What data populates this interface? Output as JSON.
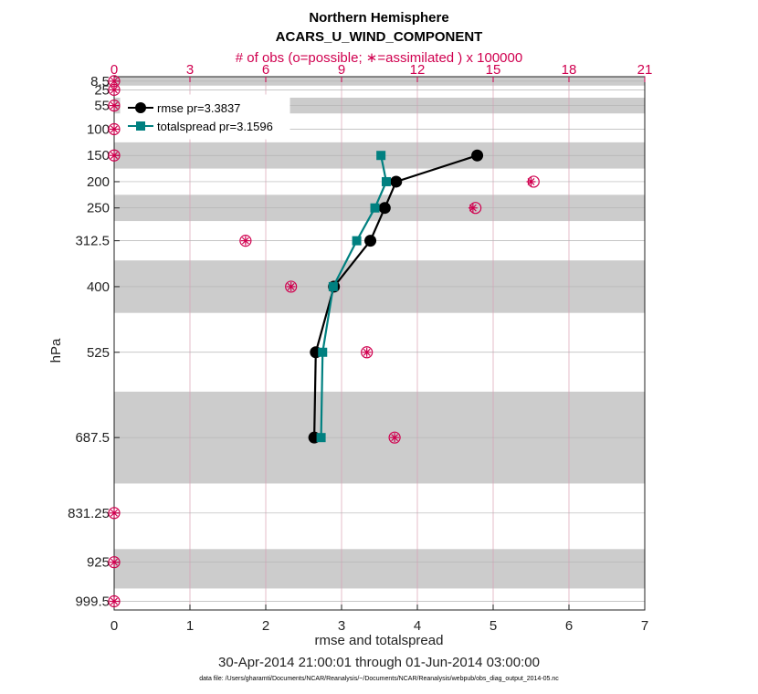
{
  "chart_data": {
    "type": "line",
    "title": "Northern Hemisphere",
    "subtitle": "ACARS_U_WIND_COMPONENT",
    "top_axis_label": "# of obs (o=possible; ∗=assimilated ) x 100000",
    "xlabel": "rmse and totalspread",
    "ylabel": "hPa",
    "date_range": "30-Apr-2014 21:00:01 through 01-Jun-2014 03:00:00",
    "footnote": "data file: /Users/gharamti/Documents/NCAR/Reanalysis/~/Documents/NCAR/Reanalysis/webpub/obs_diag_output_2014-05.nc",
    "xlim": [
      0,
      7
    ],
    "x_ticks": [
      0,
      1,
      2,
      3,
      4,
      5,
      6,
      7
    ],
    "top_xlim": [
      0,
      21
    ],
    "top_ticks": [
      0,
      3,
      6,
      9,
      12,
      15,
      18,
      21
    ],
    "ylim": [
      1016,
      0
    ],
    "levels": [
      "8.5",
      "25",
      "55",
      "100",
      "150",
      "200",
      "250",
      "312.5",
      "400",
      "525",
      "687.5",
      "831.25",
      "925",
      "999.5"
    ],
    "level_values": [
      8.5,
      25,
      55,
      100,
      150,
      200,
      250,
      312.5,
      400,
      525,
      687.5,
      831.25,
      925,
      999.5
    ],
    "shaded_bands": [
      [
        0,
        17
      ],
      [
        40,
        70
      ],
      [
        125,
        175
      ],
      [
        225,
        275
      ],
      [
        350,
        450
      ],
      [
        600,
        775
      ],
      [
        900,
        975
      ]
    ],
    "series": [
      {
        "name": "rmse",
        "legend": "rmse pr=3.3837",
        "color": "#000000",
        "marker": "circle",
        "levels": [
          150,
          200,
          250,
          312.5,
          400,
          525,
          687.5
        ],
        "values": [
          4.79,
          3.72,
          3.57,
          3.38,
          2.9,
          2.66,
          2.64
        ]
      },
      {
        "name": "totalspread",
        "legend": "totalspread pr=3.1596",
        "color": "#008080",
        "marker": "square",
        "levels": [
          150,
          200,
          250,
          312.5,
          400,
          525,
          687.5
        ],
        "values": [
          3.52,
          3.59,
          3.44,
          3.2,
          2.89,
          2.75,
          2.73
        ]
      }
    ],
    "obs_counts": {
      "levels": [
        8.5,
        25,
        55,
        100,
        150,
        200,
        250,
        312.5,
        400,
        525,
        687.5,
        831.25,
        925,
        999.5
      ],
      "possible": [
        0,
        0,
        0,
        0,
        0,
        16.6,
        14.3,
        5.2,
        7.0,
        10.0,
        11.1,
        0,
        0,
        0
      ],
      "assimilated": [
        0,
        0,
        0,
        0,
        0,
        16.5,
        14.2,
        5.2,
        7.0,
        10.0,
        11.1,
        0,
        0,
        0
      ]
    }
  }
}
